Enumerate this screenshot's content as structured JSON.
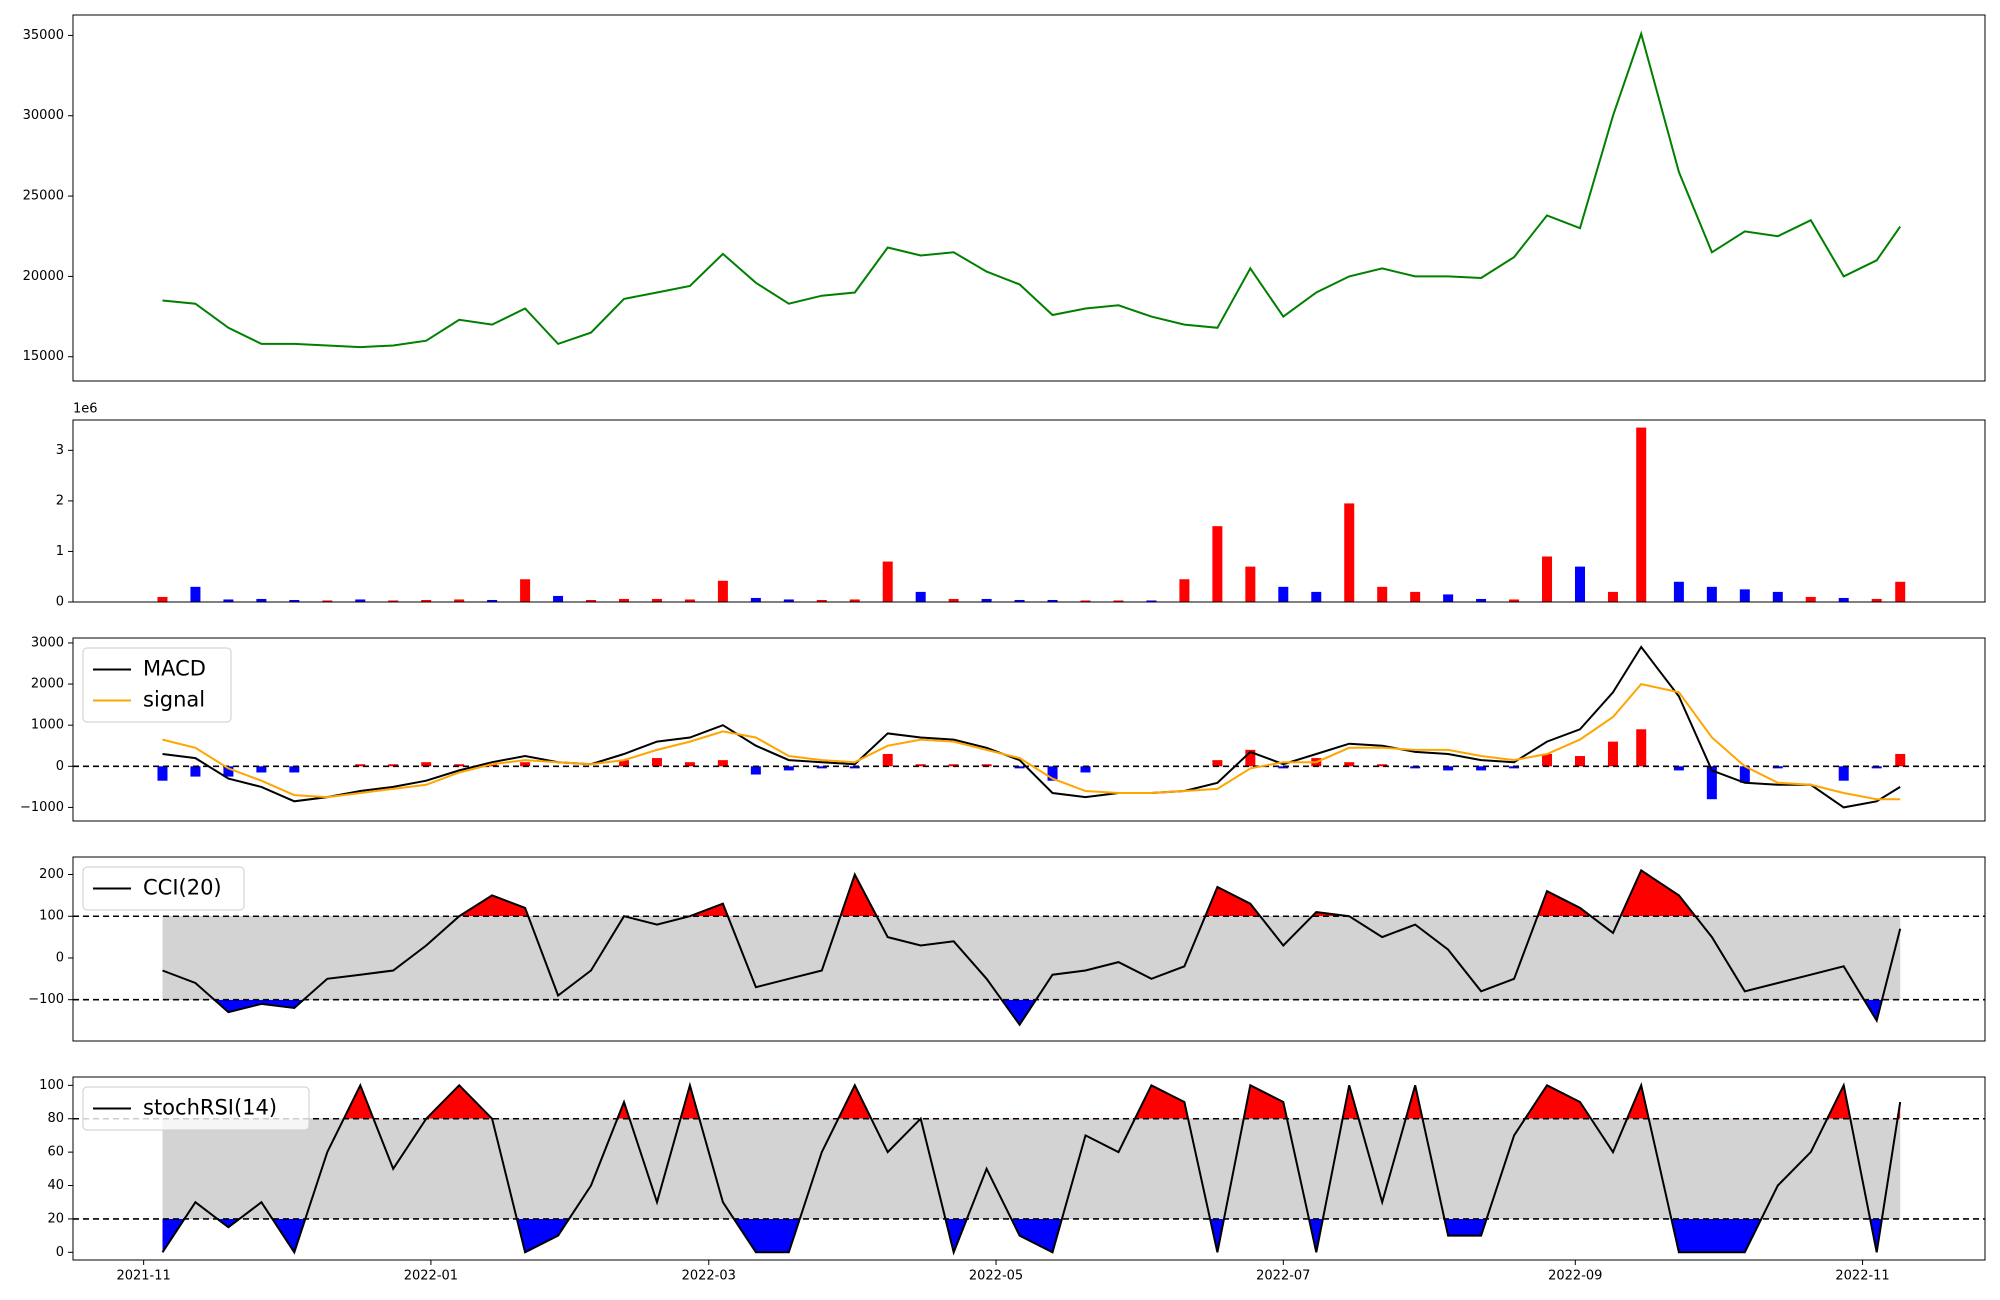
{
  "chart_data": [
    {
      "type": "line",
      "x": [
        "2021-11-05",
        "2021-11-12",
        "2021-11-19",
        "2021-11-26",
        "2021-12-03",
        "2021-12-10",
        "2021-12-17",
        "2021-12-24",
        "2021-12-31",
        "2022-01-07",
        "2022-01-14",
        "2022-01-21",
        "2022-01-28",
        "2022-02-04",
        "2022-02-11",
        "2022-02-18",
        "2022-02-25",
        "2022-03-04",
        "2022-03-11",
        "2022-03-18",
        "2022-03-25",
        "2022-04-01",
        "2022-04-08",
        "2022-04-15",
        "2022-04-22",
        "2022-04-29",
        "2022-05-06",
        "2022-05-13",
        "2022-05-20",
        "2022-05-27",
        "2022-06-03",
        "2022-06-10",
        "2022-06-17",
        "2022-06-24",
        "2022-07-01",
        "2022-07-08",
        "2022-07-15",
        "2022-07-22",
        "2022-07-29",
        "2022-08-05",
        "2022-08-12",
        "2022-08-19",
        "2022-08-26",
        "2022-09-02",
        "2022-09-09",
        "2022-09-15",
        "2022-09-23",
        "2022-09-30",
        "2022-10-07",
        "2022-10-14",
        "2022-10-21",
        "2022-10-28",
        "2022-11-04",
        "2022-11-09"
      ],
      "series": [
        {
          "color": "green",
          "values": [
            18500,
            18300,
            16800,
            15800,
            15800,
            15700,
            15600,
            15700,
            16000,
            17300,
            17000,
            18000,
            15800,
            16500,
            18600,
            19000,
            19400,
            21400,
            19600,
            18300,
            18800,
            19000,
            21800,
            21300,
            21500,
            20300,
            19500,
            17600,
            18000,
            18200,
            17500,
            17000,
            16800,
            20500,
            17500,
            19000,
            20000,
            20500,
            20000,
            20000,
            19900,
            21200,
            23800,
            23000,
            30000,
            35100,
            26500,
            21500,
            22800,
            22500,
            23500,
            20000,
            21000,
            23100
          ]
        }
      ],
      "xlim": [
        "2021-10-17",
        "2022-11-27"
      ],
      "ylim": [
        13490,
        36270
      ],
      "yticks": [
        15000,
        20000,
        25000,
        30000,
        35000
      ]
    },
    {
      "type": "bar",
      "x": [
        "2021-11-05",
        "2021-11-12",
        "2021-11-19",
        "2021-11-26",
        "2021-12-03",
        "2021-12-10",
        "2021-12-17",
        "2021-12-24",
        "2021-12-31",
        "2022-01-07",
        "2022-01-14",
        "2022-01-21",
        "2022-01-28",
        "2022-02-04",
        "2022-02-11",
        "2022-02-18",
        "2022-02-25",
        "2022-03-04",
        "2022-03-11",
        "2022-03-18",
        "2022-03-25",
        "2022-04-01",
        "2022-04-08",
        "2022-04-15",
        "2022-04-22",
        "2022-04-29",
        "2022-05-06",
        "2022-05-13",
        "2022-05-20",
        "2022-05-27",
        "2022-06-03",
        "2022-06-10",
        "2022-06-17",
        "2022-06-24",
        "2022-07-01",
        "2022-07-08",
        "2022-07-15",
        "2022-07-22",
        "2022-07-29",
        "2022-08-05",
        "2022-08-12",
        "2022-08-19",
        "2022-08-26",
        "2022-09-02",
        "2022-09-09",
        "2022-09-15",
        "2022-09-23",
        "2022-09-30",
        "2022-10-07",
        "2022-10-14",
        "2022-10-21",
        "2022-10-28",
        "2022-11-04",
        "2022-11-09"
      ],
      "values": [
        100000,
        300000,
        50000,
        60000,
        40000,
        30000,
        50000,
        30000,
        40000,
        50000,
        40000,
        450000,
        120000,
        40000,
        60000,
        60000,
        50000,
        420000,
        80000,
        50000,
        40000,
        50000,
        800000,
        200000,
        60000,
        60000,
        40000,
        40000,
        30000,
        30000,
        30000,
        450000,
        1500000,
        700000,
        300000,
        200000,
        1950000,
        300000,
        200000,
        150000,
        60000,
        50000,
        900000,
        700000,
        200000,
        3450000,
        400000,
        300000,
        250000,
        200000,
        100000,
        80000,
        60000,
        400000
      ],
      "colors": [
        "red",
        "blue",
        "blue",
        "blue",
        "blue",
        "red",
        "blue",
        "red",
        "red",
        "red",
        "blue",
        "red",
        "blue",
        "red",
        "red",
        "red",
        "red",
        "red",
        "blue",
        "blue",
        "red",
        "red",
        "red",
        "blue",
        "red",
        "blue",
        "blue",
        "blue",
        "red",
        "red",
        "blue",
        "red",
        "red",
        "red",
        "blue",
        "blue",
        "red",
        "red",
        "red",
        "blue",
        "blue",
        "red",
        "red",
        "blue",
        "red",
        "red",
        "blue",
        "blue",
        "blue",
        "blue",
        "red",
        "blue",
        "red",
        "red"
      ],
      "offset_label": "1e6",
      "xlim": [
        "2021-10-17",
        "2022-11-27"
      ],
      "ylim": [
        0,
        3600000
      ],
      "yticks": [
        0,
        {
          "value": 1000000,
          "label": "1"
        },
        {
          "value": 2000000,
          "label": "2"
        },
        {
          "value": 3000000,
          "label": "3"
        }
      ]
    },
    {
      "type": "macd",
      "x": [
        "2021-11-05",
        "2021-11-12",
        "2021-11-19",
        "2021-11-26",
        "2021-12-03",
        "2021-12-10",
        "2021-12-17",
        "2021-12-24",
        "2021-12-31",
        "2022-01-07",
        "2022-01-14",
        "2022-01-21",
        "2022-01-28",
        "2022-02-04",
        "2022-02-11",
        "2022-02-18",
        "2022-02-25",
        "2022-03-04",
        "2022-03-11",
        "2022-03-18",
        "2022-03-25",
        "2022-04-01",
        "2022-04-08",
        "2022-04-15",
        "2022-04-22",
        "2022-04-29",
        "2022-05-06",
        "2022-05-13",
        "2022-05-20",
        "2022-05-27",
        "2022-06-03",
        "2022-06-10",
        "2022-06-17",
        "2022-06-24",
        "2022-07-01",
        "2022-07-08",
        "2022-07-15",
        "2022-07-22",
        "2022-07-29",
        "2022-08-05",
        "2022-08-12",
        "2022-08-19",
        "2022-08-26",
        "2022-09-02",
        "2022-09-09",
        "2022-09-15",
        "2022-09-23",
        "2022-09-30",
        "2022-10-07",
        "2022-10-14",
        "2022-10-21",
        "2022-10-28",
        "2022-11-04",
        "2022-11-09"
      ],
      "series": [
        {
          "name": "MACD",
          "color": "black",
          "values": [
            300,
            200,
            -300,
            -500,
            -850,
            -750,
            -600,
            -500,
            -350,
            -100,
            100,
            250,
            100,
            50,
            300,
            600,
            700,
            1000,
            500,
            150,
            100,
            50,
            800,
            700,
            650,
            450,
            150,
            -650,
            -750,
            -650,
            -650,
            -600,
            -400,
            350,
            50,
            300,
            550,
            500,
            350,
            300,
            150,
            100,
            600,
            900,
            1800,
            2900,
            1700,
            -100,
            -400,
            -450,
            -450,
            -1000,
            -850,
            -500
          ]
        },
        {
          "name": "signal",
          "color": "orange",
          "values": [
            650,
            450,
            -50,
            -350,
            -700,
            -750,
            -650,
            -550,
            -450,
            -150,
            50,
            150,
            100,
            50,
            150,
            400,
            600,
            850,
            700,
            250,
            150,
            100,
            500,
            650,
            600,
            400,
            200,
            -300,
            -600,
            -650,
            -650,
            -600,
            -550,
            -50,
            100,
            100,
            450,
            450,
            400,
            400,
            250,
            150,
            300,
            650,
            1200,
            2000,
            1800,
            700,
            0,
            -400,
            -450,
            -650,
            -800,
            -800
          ]
        }
      ],
      "histogram": {
        "positive_color": "red",
        "negative_color": "blue",
        "values": [
          -350,
          -250,
          -250,
          -150,
          -150,
          0,
          50,
          50,
          100,
          50,
          50,
          100,
          0,
          0,
          150,
          200,
          100,
          150,
          -200,
          -100,
          -50,
          -50,
          300,
          50,
          50,
          50,
          -50,
          -350,
          -150,
          0,
          0,
          0,
          150,
          400,
          -50,
          200,
          100,
          50,
          -50,
          -100,
          -100,
          -50,
          300,
          250,
          600,
          900,
          -100,
          -800,
          -400,
          -50,
          0,
          -350,
          -50,
          300
        ]
      },
      "hlines": [
        0
      ],
      "legend": "upper left",
      "xlim": [
        "2021-10-17",
        "2022-11-27"
      ],
      "ylim": [
        -1330,
        3120
      ],
      "yticks": [
        {
          "value": -1000,
          "label": "−1000"
        },
        0,
        1000,
        2000,
        3000
      ]
    },
    {
      "type": "band",
      "x": [
        "2021-11-05",
        "2021-11-12",
        "2021-11-19",
        "2021-11-26",
        "2021-12-03",
        "2021-12-10",
        "2021-12-17",
        "2021-12-24",
        "2021-12-31",
        "2022-01-07",
        "2022-01-14",
        "2022-01-21",
        "2022-01-28",
        "2022-02-04",
        "2022-02-11",
        "2022-02-18",
        "2022-02-25",
        "2022-03-04",
        "2022-03-11",
        "2022-03-18",
        "2022-03-25",
        "2022-04-01",
        "2022-04-08",
        "2022-04-15",
        "2022-04-22",
        "2022-04-29",
        "2022-05-06",
        "2022-05-13",
        "2022-05-20",
        "2022-05-27",
        "2022-06-03",
        "2022-06-10",
        "2022-06-17",
        "2022-06-24",
        "2022-07-01",
        "2022-07-08",
        "2022-07-15",
        "2022-07-22",
        "2022-07-29",
        "2022-08-05",
        "2022-08-12",
        "2022-08-19",
        "2022-08-26",
        "2022-09-02",
        "2022-09-09",
        "2022-09-15",
        "2022-09-23",
        "2022-09-30",
        "2022-10-07",
        "2022-10-14",
        "2022-10-21",
        "2022-10-28",
        "2022-11-04",
        "2022-11-09"
      ],
      "series": [
        {
          "name": "CCI(20)",
          "color": "black",
          "values": [
            -30,
            -60,
            -130,
            -110,
            -120,
            -50,
            -40,
            -30,
            30,
            100,
            150,
            120,
            -90,
            -30,
            100,
            80,
            100,
            130,
            -70,
            -50,
            -30,
            200,
            50,
            30,
            40,
            -50,
            -160,
            -40,
            -30,
            -10,
            -50,
            -20,
            170,
            130,
            30,
            110,
            100,
            50,
            80,
            20,
            -80,
            -50,
            160,
            120,
            60,
            210,
            150,
            50,
            -80,
            -60,
            -40,
            -20,
            -150,
            70
          ]
        }
      ],
      "bands": [
        -100,
        100
      ],
      "band_fill": "lightgray",
      "upper_color": "red",
      "lower_color": "blue",
      "legend": "upper left",
      "xlim": [
        "2021-10-17",
        "2022-11-27"
      ],
      "ylim": [
        -199,
        242
      ],
      "yticks": [
        {
          "value": -100,
          "label": "−100"
        },
        0,
        100,
        200
      ]
    },
    {
      "type": "band",
      "x": [
        "2021-11-05",
        "2021-11-12",
        "2021-11-19",
        "2021-11-26",
        "2021-12-03",
        "2021-12-10",
        "2021-12-17",
        "2021-12-24",
        "2021-12-31",
        "2022-01-07",
        "2022-01-14",
        "2022-01-21",
        "2022-01-28",
        "2022-02-04",
        "2022-02-11",
        "2022-02-18",
        "2022-02-25",
        "2022-03-04",
        "2022-03-11",
        "2022-03-18",
        "2022-03-25",
        "2022-04-01",
        "2022-04-08",
        "2022-04-15",
        "2022-04-22",
        "2022-04-29",
        "2022-05-06",
        "2022-05-13",
        "2022-05-20",
        "2022-05-27",
        "2022-06-03",
        "2022-06-10",
        "2022-06-17",
        "2022-06-24",
        "2022-07-01",
        "2022-07-08",
        "2022-07-15",
        "2022-07-22",
        "2022-07-29",
        "2022-08-05",
        "2022-08-12",
        "2022-08-19",
        "2022-08-26",
        "2022-09-02",
        "2022-09-09",
        "2022-09-15",
        "2022-09-23",
        "2022-09-30",
        "2022-10-07",
        "2022-10-14",
        "2022-10-21",
        "2022-10-28",
        "2022-11-04",
        "2022-11-09"
      ],
      "series": [
        {
          "name": "stochRSI(14)",
          "color": "black",
          "values": [
            0,
            30,
            15,
            30,
            0,
            60,
            100,
            50,
            80,
            100,
            80,
            0,
            10,
            40,
            90,
            30,
            100,
            30,
            0,
            0,
            60,
            100,
            60,
            80,
            0,
            50,
            10,
            0,
            70,
            60,
            100,
            90,
            0,
            100,
            90,
            0,
            100,
            30,
            100,
            10,
            10,
            70,
            100,
            90,
            60,
            100,
            0,
            0,
            0,
            40,
            60,
            100,
            0,
            90
          ]
        }
      ],
      "bands": [
        20,
        80
      ],
      "band_fill": "lightgray",
      "upper_color": "red",
      "lower_color": "blue",
      "legend": "upper left",
      "xlim": [
        "2021-10-17",
        "2022-11-27"
      ],
      "ylim": [
        -4.6,
        105
      ],
      "yticks": [
        0,
        20,
        40,
        60,
        80,
        100
      ],
      "xticks": [
        {
          "value": "2021-11-01",
          "label": "2021-11"
        },
        {
          "value": "2022-01-01",
          "label": "2022-01"
        },
        {
          "value": "2022-03-01",
          "label": "2022-03"
        },
        {
          "value": "2022-05-01",
          "label": "2022-05"
        },
        {
          "value": "2022-07-01",
          "label": "2022-07"
        },
        {
          "value": "2022-09-01",
          "label": "2022-09"
        },
        {
          "value": "2022-11-01",
          "label": "2022-11"
        }
      ]
    }
  ]
}
